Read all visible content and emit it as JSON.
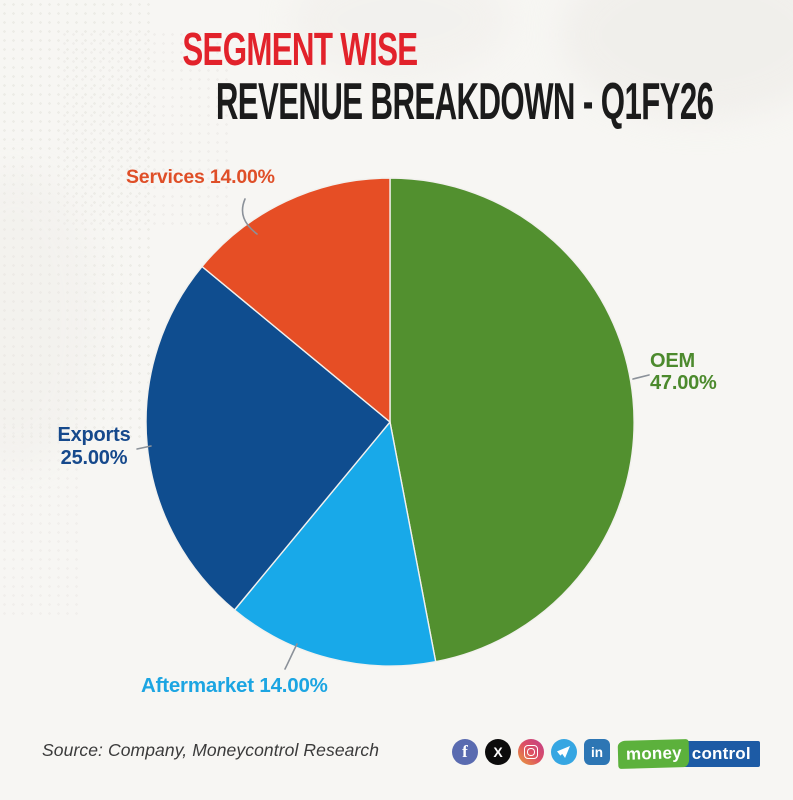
{
  "title": {
    "line1": "SEGMENT WISE",
    "line2": "REVENUE BREAKDOWN - Q1FY26"
  },
  "chart_data": {
    "type": "pie",
    "title": "SEGMENT WISE REVENUE BREAKDOWN - Q1FY26",
    "units": "percent",
    "rotation": "clockwise-from-12-oclock",
    "legend_position": "labels-around-pie",
    "segments": [
      {
        "name": "OEM",
        "value": 47.0,
        "pct_label": "47.00%",
        "color": "#52902f",
        "label_color": "#4c8a2d"
      },
      {
        "name": "Aftermarket",
        "value": 14.0,
        "pct_label": "14.00%",
        "color": "#18a9e9",
        "label_color": "#1ca5e2"
      },
      {
        "name": "Exports",
        "value": 25.0,
        "pct_label": "25.00%",
        "color": "#0f4d8f",
        "label_color": "#16498c"
      },
      {
        "name": "Services",
        "value": 14.0,
        "pct_label": "14.00%",
        "color": "#e64e25",
        "label_color": "#df4f28"
      }
    ]
  },
  "footer": {
    "source": "Source: Company, Moneycontrol Research",
    "social": {
      "facebook": "f",
      "x": "X",
      "linkedin": "in"
    },
    "logo": {
      "green_text": "money",
      "blue_text": "control",
      "green_color": "#5cb13c",
      "blue_color": "#1d5ba5"
    }
  }
}
